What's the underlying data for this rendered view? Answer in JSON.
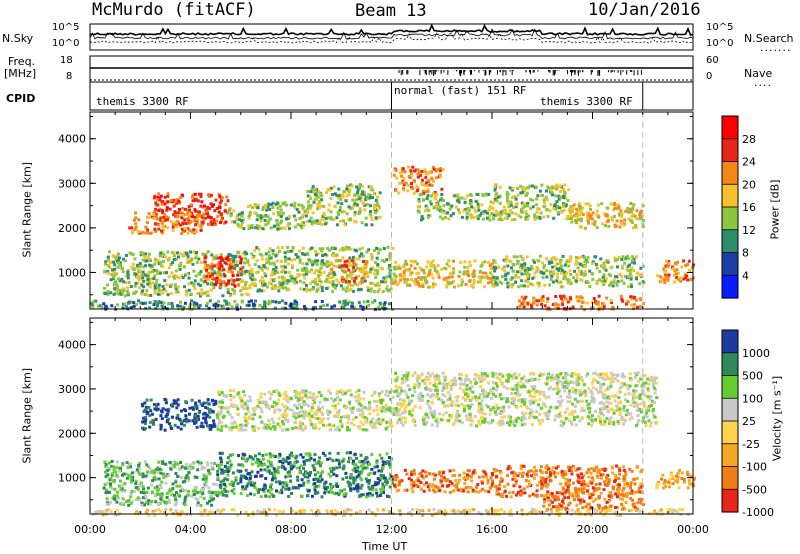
{
  "header": {
    "station": "McMurdo (fitACF)",
    "beam": "Beam 13",
    "date": "10/Jan/2016"
  },
  "strip": {
    "nsky_label": "N.Sky",
    "freq_label": "Freq.",
    "freq_unit": "[MHz]",
    "cpid_label": "CPID",
    "nsearch_label": "N.Search",
    "nave_label": "Nave",
    "nsky_ticks": [
      "10^5",
      "10^0"
    ],
    "nsearch_ticks": [
      "10^5",
      "10^0"
    ],
    "freq_ticks": [
      "18",
      "8"
    ],
    "nave_ticks": [
      "60",
      "0"
    ],
    "cpid_segments": [
      {
        "label": "themis 3300 RF",
        "start_h": 0,
        "end_h": 12
      },
      {
        "label": "normal (fast) 151 RF",
        "start_h": 12,
        "end_h": 22
      },
      {
        "label": "themis 3300 RF",
        "start_h": 22,
        "end_h": 24
      }
    ]
  },
  "x_axis": {
    "title": "Time UT",
    "ticks": [
      "00:00",
      "04:00",
      "08:00",
      "12:00",
      "16:00",
      "20:00",
      "00:00"
    ]
  },
  "chart_data": [
    {
      "type": "heatmap",
      "name": "power",
      "ylabel": "Slant Range [km]",
      "yticks": [
        "1000",
        "2000",
        "3000",
        "4000"
      ],
      "ylim": [
        180,
        4600
      ],
      "xlim_hours": [
        0,
        24
      ],
      "colorbar_label": "Power [dB]",
      "colorbar_ticks": [
        "4",
        "8",
        "12",
        "16",
        "20",
        "24",
        "28"
      ],
      "colorscale": [
        "#0a1cff",
        "#1c3ea6",
        "#2d8e6b",
        "#8cc63f",
        "#f6c12c",
        "#f58718",
        "#e8251a",
        "#ff0000"
      ],
      "blobs": [
        {
          "t0": 2.5,
          "t1": 5.5,
          "r0": 2100,
          "r1": 2800,
          "c": 6
        },
        {
          "t0": 1.5,
          "t1": 4.5,
          "r0": 1900,
          "r1": 2400,
          "c": 5
        },
        {
          "t0": 5.5,
          "t1": 8.5,
          "r0": 2000,
          "r1": 2600,
          "c": 3
        },
        {
          "t0": 8.5,
          "t1": 11.5,
          "r0": 2100,
          "r1": 3000,
          "c": 3
        },
        {
          "t0": 12,
          "t1": 14,
          "r0": 2800,
          "r1": 3400,
          "c": 5
        },
        {
          "t0": 13,
          "t1": 16,
          "r0": 2200,
          "r1": 2800,
          "c": 3
        },
        {
          "t0": 16,
          "t1": 19,
          "r0": 2200,
          "r1": 3000,
          "c": 3
        },
        {
          "t0": 19,
          "t1": 22,
          "r0": 2000,
          "r1": 2600,
          "c": 4
        },
        {
          "t0": 0.5,
          "t1": 6.5,
          "r0": 500,
          "r1": 1500,
          "c": 3
        },
        {
          "t0": 4.5,
          "t1": 6.0,
          "r0": 700,
          "r1": 1400,
          "c": 6
        },
        {
          "t0": 6.5,
          "t1": 12,
          "r0": 600,
          "r1": 1600,
          "c": 3
        },
        {
          "t0": 9.5,
          "t1": 11,
          "r0": 800,
          "r1": 1300,
          "c": 5
        },
        {
          "t0": 12,
          "t1": 16,
          "r0": 700,
          "r1": 1300,
          "c": 4
        },
        {
          "t0": 16,
          "t1": 22,
          "r0": 700,
          "r1": 1400,
          "c": 3
        },
        {
          "t0": 17,
          "t1": 22,
          "r0": 200,
          "r1": 500,
          "c": 5
        },
        {
          "t0": 22.5,
          "t1": 24,
          "r0": 800,
          "r1": 1300,
          "c": 5
        },
        {
          "t0": 0,
          "t1": 12,
          "r0": 200,
          "r1": 400,
          "c": 2
        }
      ]
    },
    {
      "type": "heatmap",
      "name": "velocity",
      "ylabel": "Slant Range [km]",
      "yticks": [
        "1000",
        "2000",
        "3000",
        "4000"
      ],
      "ylim": [
        180,
        4600
      ],
      "xlim_hours": [
        0,
        24
      ],
      "colorbar_label": "Velocity [m s⁻¹]",
      "colorbar_ticks": [
        "1000",
        "500",
        "100",
        "25",
        "-25",
        "-100",
        "-500",
        "-1000"
      ],
      "colorscale": [
        "#1e3ca0",
        "#2e8b57",
        "#66cc33",
        "#c8c8c8",
        "#ffd24d",
        "#f5a623",
        "#f07d13",
        "#e8251a"
      ],
      "blobs": [
        {
          "t0": 2.0,
          "t1": 5.0,
          "r0": 2100,
          "r1": 2800,
          "c": 0
        },
        {
          "t0": 5.0,
          "t1": 12,
          "r0": 2100,
          "r1": 3000,
          "c": 3
        },
        {
          "t0": 12,
          "t1": 22.5,
          "r0": 2200,
          "r1": 3400,
          "c": 3
        },
        {
          "t0": 0.5,
          "t1": 5.0,
          "r0": 400,
          "r1": 1400,
          "c": 2
        },
        {
          "t0": 5.0,
          "t1": 12,
          "r0": 600,
          "r1": 1600,
          "c": 1
        },
        {
          "t0": 12,
          "t1": 16,
          "r0": 700,
          "r1": 1200,
          "c": 6
        },
        {
          "t0": 16,
          "t1": 22,
          "r0": 600,
          "r1": 1300,
          "c": 6
        },
        {
          "t0": 18,
          "t1": 22,
          "r0": 300,
          "r1": 700,
          "c": 6
        },
        {
          "t0": 22.5,
          "t1": 24,
          "r0": 800,
          "r1": 1200,
          "c": 5
        },
        {
          "t0": 0,
          "t1": 24,
          "r0": 180,
          "r1": 320,
          "c": 4
        }
      ]
    }
  ]
}
